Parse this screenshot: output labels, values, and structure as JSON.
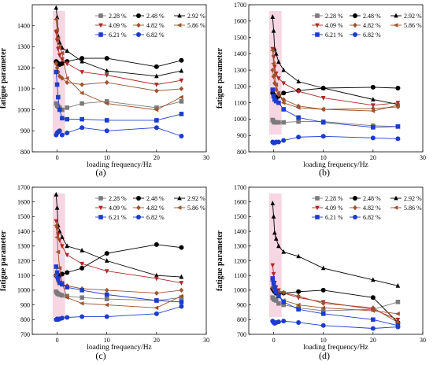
{
  "figure": {
    "panel_labels": [
      "(a)",
      "(b)",
      "(c)",
      "(d)"
    ]
  },
  "colors": {
    "black": "#000000",
    "brown_red": "#b02828",
    "brown": "#a0522d",
    "blue": "#1c3ccc",
    "grey": "#7a7a7a",
    "band": "#f2c4d6"
  },
  "chart_data": [
    {
      "type": "line",
      "panel": "(a)",
      "xlabel": "loading frequency/Hz",
      "ylabel": "fatigue parameter",
      "xlim": [
        -5,
        30
      ],
      "ylim": [
        800,
        1500
      ],
      "xticks": [
        0,
        10,
        20,
        30
      ],
      "yticks": [
        800,
        900,
        1000,
        1100,
        1200,
        1300,
        1400
      ],
      "series": [
        {
          "name": "2.28 %",
          "x": [
            -0.2,
            0,
            0.2,
            0.5,
            1,
            2,
            5,
            10,
            20,
            25
          ],
          "y": [
            1030,
            1020,
            1015,
            1010,
            1000,
            1010,
            1030,
            1040,
            1010,
            1040
          ]
        },
        {
          "name": "2.48 %",
          "x": [
            -0.2,
            0,
            0.2,
            0.5,
            1,
            2,
            5,
            10,
            20,
            25
          ],
          "y": [
            1230,
            1225,
            1220,
            1215,
            1220,
            1230,
            1245,
            1245,
            1205,
            1235
          ]
        },
        {
          "name": "2.92 %",
          "x": [
            -0.2,
            0,
            0.2,
            0.5,
            1,
            2,
            5,
            10,
            20,
            25
          ],
          "y": [
            1485,
            1440,
            1350,
            1320,
            1295,
            1280,
            1230,
            1185,
            1160,
            1185
          ]
        },
        {
          "name": "4.09 %",
          "x": [
            -0.2,
            0,
            0.2,
            0.5,
            1,
            2,
            5,
            10,
            20,
            25
          ],
          "y": [
            1370,
            1330,
            1290,
            1260,
            1240,
            1220,
            1180,
            1165,
            1120,
            1140
          ]
        },
        {
          "name": "4.82 %",
          "x": [
            -0.2,
            0,
            0.2,
            0.5,
            1,
            2,
            5,
            10,
            20,
            25
          ],
          "y": [
            1220,
            1200,
            1180,
            1160,
            1150,
            1130,
            1120,
            1130,
            1090,
            1100
          ]
        },
        {
          "name": "5.86 %",
          "x": [
            -0.2,
            0,
            0.2,
            0.5,
            1,
            2,
            5,
            10,
            20,
            25
          ],
          "y": [
            1430,
            1380,
            1340,
            1300,
            1270,
            1150,
            1080,
            1030,
            1000,
            1060
          ]
        },
        {
          "name": "6.21 %",
          "x": [
            -0.2,
            0,
            0.2,
            0.5,
            1,
            2,
            5,
            10,
            20,
            25
          ],
          "y": [
            1180,
            1120,
            1060,
            1000,
            960,
            955,
            955,
            950,
            950,
            980
          ]
        },
        {
          "name": "6.82 %",
          "x": [
            -0.2,
            0,
            0.2,
            0.5,
            1,
            2,
            5,
            10,
            20,
            25
          ],
          "y": [
            880,
            890,
            895,
            900,
            880,
            890,
            915,
            900,
            915,
            875
          ]
        }
      ]
    },
    {
      "type": "line",
      "panel": "(b)",
      "xlabel": "loading frequency/Hz",
      "ylabel": "fatigue parameter",
      "xlim": [
        -5,
        30
      ],
      "ylim": [
        800,
        1700
      ],
      "xticks": [
        0,
        10,
        20,
        30
      ],
      "yticks": [
        800,
        900,
        1000,
        1100,
        1200,
        1300,
        1400,
        1500,
        1600,
        1700
      ],
      "series": [
        {
          "name": "2.28 %",
          "x": [
            -0.2,
            0,
            0.2,
            0.5,
            1,
            2,
            5,
            10,
            20,
            25
          ],
          "y": [
            995,
            985,
            980,
            980,
            980,
            980,
            985,
            985,
            960,
            955
          ]
        },
        {
          "name": "2.48 %",
          "x": [
            -0.2,
            0,
            0.2,
            0.5,
            1,
            2,
            5,
            10,
            20,
            25
          ],
          "y": [
            1160,
            1150,
            1140,
            1130,
            1140,
            1160,
            1175,
            1190,
            1195,
            1190
          ]
        },
        {
          "name": "2.92 %",
          "x": [
            -0.2,
            0,
            0.2,
            0.5,
            1,
            2,
            5,
            10,
            20,
            25
          ],
          "y": [
            1625,
            1540,
            1430,
            1400,
            1350,
            1300,
            1230,
            1190,
            1120,
            1090
          ]
        },
        {
          "name": "4.09 %",
          "x": [
            -0.2,
            0,
            0.2,
            0.5,
            1,
            2,
            5,
            10,
            20,
            25
          ],
          "y": [
            1430,
            1380,
            1320,
            1280,
            1250,
            1220,
            1170,
            1130,
            1085,
            1100
          ]
        },
        {
          "name": "4.82 %",
          "x": [
            -0.2,
            0,
            0.2,
            0.5,
            1,
            2,
            5,
            10,
            20,
            25
          ],
          "y": [
            1300,
            1260,
            1220,
            1180,
            1150,
            1120,
            1080,
            1060,
            1065,
            1075
          ]
        },
        {
          "name": "5.86 %",
          "x": [
            -0.2,
            0,
            0.2,
            0.5,
            1,
            2,
            5,
            10,
            20,
            25
          ],
          "y": [
            1420,
            1340,
            1270,
            1210,
            1160,
            1100,
            1070,
            1060,
            1050,
            1085
          ]
        },
        {
          "name": "6.21 %",
          "x": [
            -0.2,
            0,
            0.2,
            0.5,
            1,
            2,
            5,
            10,
            20,
            25
          ],
          "y": [
            1180,
            1140,
            1120,
            1110,
            1100,
            1060,
            1010,
            980,
            950,
            955
          ]
        },
        {
          "name": "6.82 %",
          "x": [
            -0.2,
            0,
            0.2,
            0.5,
            1,
            2,
            5,
            10,
            20,
            25
          ],
          "y": [
            860,
            855,
            855,
            860,
            860,
            870,
            890,
            895,
            885,
            880
          ]
        }
      ]
    },
    {
      "type": "line",
      "panel": "(c)",
      "xlabel": "loading frequency/Hz",
      "ylabel": "fatigue parameter",
      "xlim": [
        -5,
        30
      ],
      "ylim": [
        700,
        1700
      ],
      "xticks": [
        0,
        10,
        20,
        30
      ],
      "yticks": [
        700,
        800,
        900,
        1000,
        1100,
        1200,
        1300,
        1400,
        1500,
        1600,
        1700
      ],
      "series": [
        {
          "name": "2.28 %",
          "x": [
            -0.2,
            0,
            0.2,
            0.5,
            1,
            2,
            5,
            10,
            20,
            25
          ],
          "y": [
            990,
            980,
            975,
            970,
            965,
            960,
            950,
            940,
            930,
            950
          ]
        },
        {
          "name": "2.48 %",
          "x": [
            -0.2,
            0,
            0.2,
            0.5,
            1,
            2,
            5,
            10,
            20,
            25
          ],
          "y": [
            1100,
            1095,
            1090,
            1100,
            1110,
            1120,
            1150,
            1250,
            1310,
            1290
          ]
        },
        {
          "name": "2.92 %",
          "x": [
            -0.2,
            0,
            0.2,
            0.5,
            1,
            2,
            5,
            10,
            20,
            25
          ],
          "y": [
            1650,
            1560,
            1440,
            1400,
            1360,
            1300,
            1270,
            1200,
            1100,
            1090
          ]
        },
        {
          "name": "4.09 %",
          "x": [
            -0.2,
            0,
            0.2,
            0.5,
            1,
            2,
            5,
            10,
            20,
            25
          ],
          "y": [
            1470,
            1420,
            1380,
            1340,
            1300,
            1240,
            1180,
            1130,
            1080,
            1050
          ]
        },
        {
          "name": "4.82 %",
          "x": [
            -0.2,
            0,
            0.2,
            0.5,
            1,
            2,
            5,
            10,
            20,
            25
          ],
          "y": [
            1100,
            1080,
            1060,
            1050,
            1040,
            1030,
            1010,
            1000,
            980,
            1000
          ]
        },
        {
          "name": "5.86 %",
          "x": [
            -0.2,
            0,
            0.2,
            0.5,
            1,
            2,
            5,
            10,
            20,
            25
          ],
          "y": [
            1440,
            1360,
            1260,
            1150,
            1050,
            950,
            910,
            900,
            880,
            960
          ]
        },
        {
          "name": "6.21 %",
          "x": [
            -0.2,
            0,
            0.2,
            0.5,
            1,
            2,
            5,
            10,
            20,
            25
          ],
          "y": [
            1160,
            1120,
            1080,
            1050,
            1040,
            1020,
            1000,
            970,
            930,
            920
          ]
        },
        {
          "name": "6.82 %",
          "x": [
            -0.2,
            0,
            0.2,
            0.5,
            1,
            2,
            5,
            10,
            20,
            25
          ],
          "y": [
            800,
            805,
            800,
            805,
            810,
            815,
            820,
            820,
            840,
            890
          ]
        }
      ]
    },
    {
      "type": "line",
      "panel": "(d)",
      "xlabel": "loading frequency/Hz",
      "ylabel": "fatigue parameter",
      "xlim": [
        -5,
        30
      ],
      "ylim": [
        700,
        1700
      ],
      "xticks": [
        0,
        10,
        20,
        30
      ],
      "yticks": [
        700,
        800,
        900,
        1000,
        1100,
        1200,
        1300,
        1400,
        1500,
        1600,
        1700
      ],
      "series": [
        {
          "name": "2.28 %",
          "x": [
            -0.2,
            0,
            0.2,
            0.5,
            1,
            2,
            5,
            10,
            20,
            25
          ],
          "y": [
            950,
            940,
            935,
            930,
            910,
            900,
            880,
            860,
            870,
            920
          ]
        },
        {
          "name": "2.48 %",
          "x": [
            -0.2,
            0,
            0.2,
            0.5,
            1,
            2,
            5,
            10,
            20,
            25
          ],
          "y": [
            1010,
            1000,
            990,
            980,
            975,
            980,
            990,
            1000,
            950,
            780
          ]
        },
        {
          "name": "2.92 %",
          "x": [
            -0.2,
            0,
            0.2,
            0.5,
            1,
            2,
            5,
            10,
            20,
            25
          ],
          "y": [
            1590,
            1500,
            1390,
            1350,
            1300,
            1260,
            1230,
            1150,
            1070,
            1030
          ]
        },
        {
          "name": "4.09 %",
          "x": [
            -0.2,
            0,
            0.2,
            0.5,
            1,
            2,
            5,
            10,
            20,
            25
          ],
          "y": [
            1170,
            1110,
            1050,
            1020,
            1000,
            980,
            950,
            920,
            870,
            800
          ]
        },
        {
          "name": "4.82 %",
          "x": [
            -0.2,
            0,
            0.2,
            0.5,
            1,
            2,
            5,
            10,
            20,
            25
          ],
          "y": [
            1020,
            1010,
            1000,
            990,
            990,
            985,
            960,
            910,
            880,
            780
          ]
        },
        {
          "name": "5.86 %",
          "x": [
            -0.2,
            0,
            0.2,
            0.5,
            1,
            2,
            5,
            10,
            20,
            25
          ],
          "y": [
            1060,
            1030,
            1000,
            980,
            960,
            930,
            900,
            880,
            860,
            840
          ]
        },
        {
          "name": "6.21 %",
          "x": [
            -0.2,
            0,
            0.2,
            0.5,
            1,
            2,
            5,
            10,
            20,
            25
          ],
          "y": [
            1080,
            1050,
            1020,
            990,
            960,
            920,
            870,
            840,
            800,
            760
          ]
        },
        {
          "name": "6.82 %",
          "x": [
            -0.2,
            0,
            0.2,
            0.5,
            1,
            2,
            5,
            10,
            20,
            25
          ],
          "y": [
            790,
            780,
            775,
            780,
            785,
            790,
            780,
            760,
            740,
            750
          ]
        }
      ]
    }
  ],
  "series_styles": [
    {
      "name": "2.28 %",
      "color": "#7a7a7a",
      "marker": "square"
    },
    {
      "name": "2.48 %",
      "color": "#000000",
      "marker": "circle"
    },
    {
      "name": "2.92 %",
      "color": "#000000",
      "marker": "triangle-up"
    },
    {
      "name": "4.09 %",
      "color": "#b02828",
      "marker": "triangle-down"
    },
    {
      "name": "4.82 %",
      "color": "#a0522d",
      "marker": "diamond"
    },
    {
      "name": "5.86 %",
      "color": "#a0522d",
      "marker": "triangle-left"
    },
    {
      "name": "6.21 %",
      "color": "#1c3ccc",
      "marker": "square"
    },
    {
      "name": "6.82 %",
      "color": "#1c3ccc",
      "marker": "circle"
    }
  ]
}
